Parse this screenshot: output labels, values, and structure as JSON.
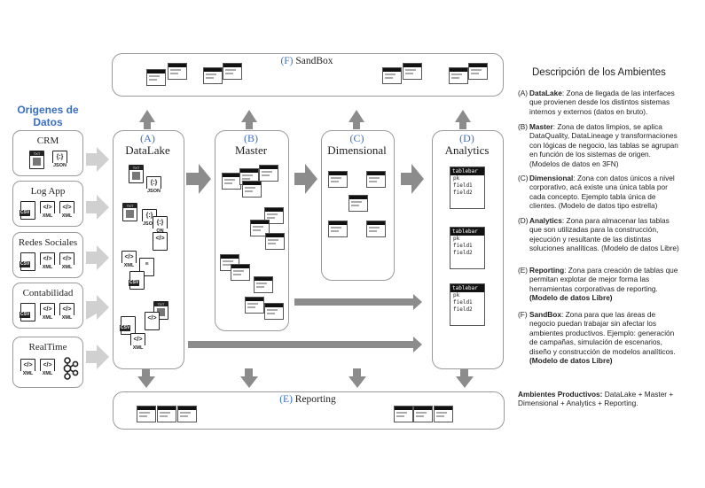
{
  "origins": {
    "title_line1": "Origenes de",
    "title_line2": "Datos",
    "sources": [
      {
        "name": "CRM",
        "icons": [
          "TXT",
          "JSON"
        ]
      },
      {
        "name": "Log App",
        "icons": [
          "CSV",
          "XML",
          "XML"
        ]
      },
      {
        "name": "Redes Sociales",
        "icons": [
          "CSV",
          "XML",
          "XML"
        ]
      },
      {
        "name": "Contabilidad",
        "icons": [
          "CSV",
          "XML",
          "XML"
        ]
      },
      {
        "name": "RealTime",
        "icons": [
          "XML",
          "XML",
          "kafka"
        ]
      }
    ]
  },
  "stages": {
    "sandbox": {
      "letter": "(F)",
      "name": "SandBox"
    },
    "datalake": {
      "letter": "(A)",
      "name": "DataLake"
    },
    "master": {
      "letter": "(B)",
      "name": "Master"
    },
    "dimensional": {
      "letter": "(C)",
      "name": "Dimensional"
    },
    "analytics": {
      "letter": "(D)",
      "name": "Analytics"
    },
    "reporting": {
      "letter": "(E)",
      "name": "Reporting"
    }
  },
  "icon_labels": {
    "txt": "TXT",
    "json": "JSON",
    "csv": "CSV",
    "xml": "XML",
    "on": "ON"
  },
  "analytics_table": {
    "name": "tablebar",
    "fields": [
      "pk",
      "field1",
      "field2"
    ]
  },
  "description": {
    "title": "Descripción de los Ambientes",
    "items": [
      {
        "label": "(A)",
        "term": "DataLake",
        "text": ": Zona de llegada de las interfaces que provienen desde los distintos sistemas internos y externos (datos en bruto)."
      },
      {
        "label": "(B)",
        "term": "Master",
        "text": ": Zona de datos limpios, se aplica DataQuality, DataLineage y transformaciones con lógicas de negocio, las tablas se agrupan en función de los sistemas de origen. (Modelos de datos en 3FN)"
      },
      {
        "label": "(C)",
        "term": "Dimensional",
        "text": ": Zona con datos únicos a nivel corporativo, acá existe una única tabla por cada concepto. Ejemplo tabla única de clientes. (Modelo de datos tipo estrella)"
      },
      {
        "label": "(D)",
        "term": "Analytics",
        "text": ": Zona para almacenar las tablas que son utilizadas para la construcción, ejecución y resultante de las distintas soluciones analíticas. (Modelo de datos Libre)"
      },
      {
        "label": "(E)",
        "term": "Reporting",
        "text": ": Zona para creación de tablas que permitan explotar de mejor forma las herramientas corporativas de reporting.",
        "bold_note": "(Modelo de datos Libre)"
      },
      {
        "label": "(F)",
        "term": "SandBox",
        "text": ": Zona para que las áreas de negocio puedan trabajar sin afectar los ambientes productivos. Ejemplo: generación de campañas, simulación de escenarios, diseño y construcción de modelos analíticos.",
        "bold_note": "(Modelo de datos Libre)"
      }
    ],
    "productive_label": "Ambientes Productivos:",
    "productive_text": " DataLake + Master + Dimensional + Analytics + Reporting."
  },
  "colors": {
    "accent": "#3b6fc4",
    "arrow": "#8c8c8c",
    "border": "#9a9a9a"
  }
}
